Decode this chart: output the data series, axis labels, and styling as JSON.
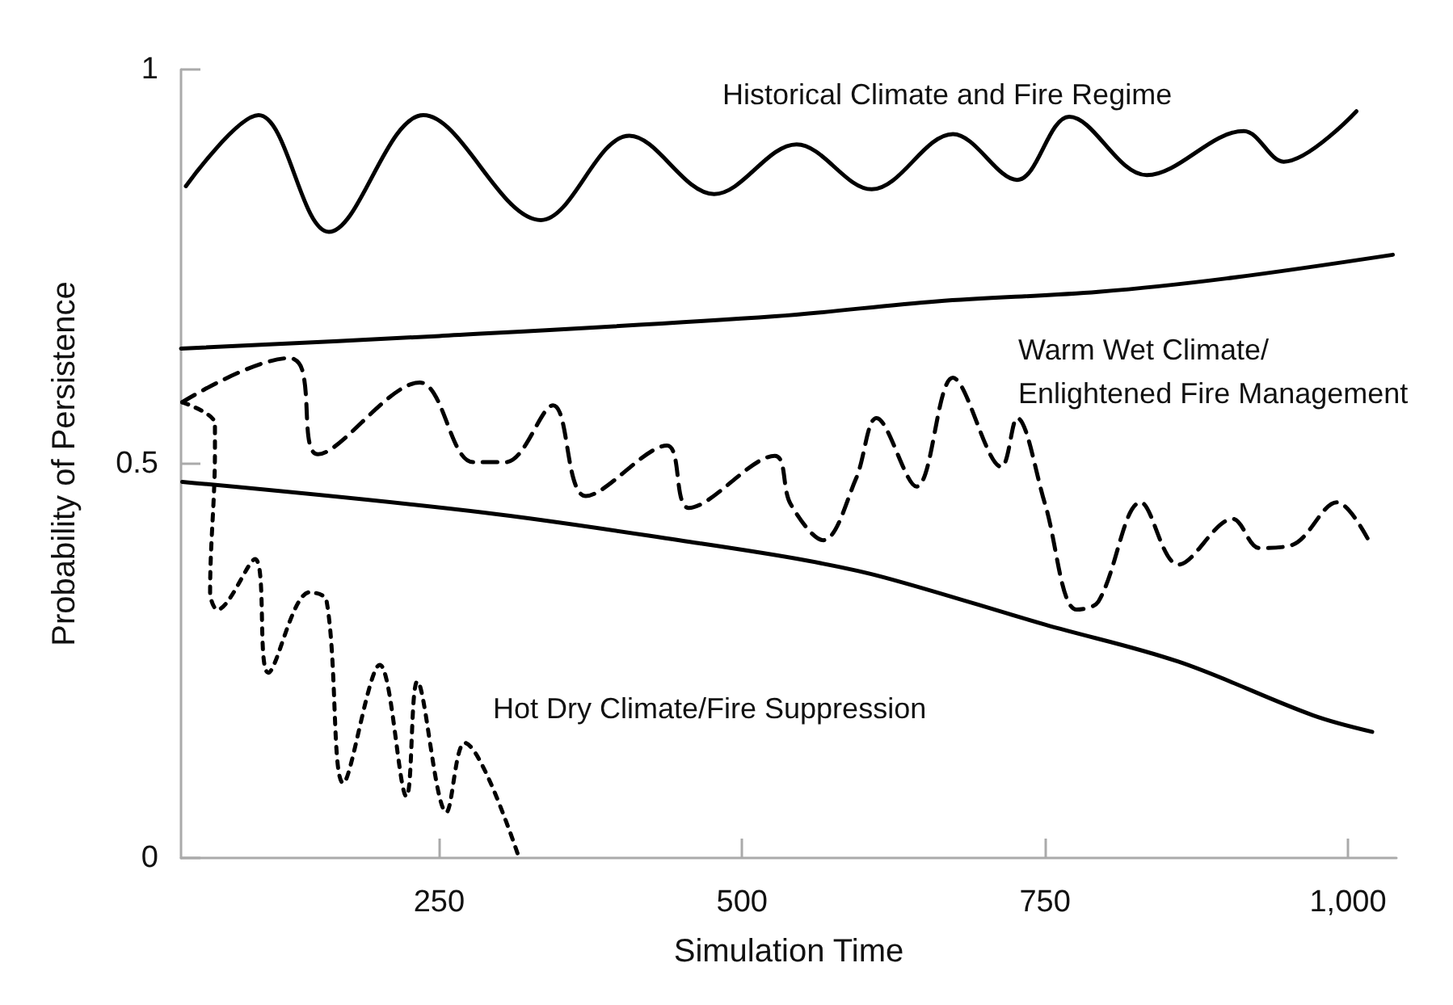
{
  "chart_data": {
    "type": "line",
    "xlabel": "Simulation Time",
    "ylabel": "Probability of Persistence",
    "xlim": [
      37,
      1040
    ],
    "ylim": [
      0,
      1
    ],
    "xticks": [
      250,
      500,
      750,
      {
        "value": 1000,
        "label": "1,000"
      }
    ],
    "yticks": [
      0,
      0.5,
      1
    ],
    "grid": false,
    "marker": "none",
    "series": [
      {
        "color": "#000000",
        "line_style": "solid",
        "x": [
          41,
          101,
          159,
          237,
          334,
          407,
          477,
          545,
          607,
          674,
          727,
          770,
          834,
          914,
          947,
          1007
        ],
        "values": [
          0.852,
          0.942,
          0.794,
          0.942,
          0.809,
          0.916,
          0.842,
          0.905,
          0.848,
          0.918,
          0.86,
          0.94,
          0.866,
          0.922,
          0.883,
          0.947
        ]
      },
      {
        "color": "#000000",
        "line_style": "solid",
        "x": [
          37,
          250,
          527,
          661,
          794,
          900,
          1037
        ],
        "values": [
          0.646,
          0.662,
          0.687,
          0.706,
          0.718,
          0.735,
          0.765
        ]
      },
      {
        "color": "#000000",
        "line_style": "dashed",
        "x": [
          38,
          127,
          137,
          150,
          234,
          278,
          305,
          344,
          371,
          438,
          456,
          527,
          540,
          567,
          594,
          611,
          644,
          674,
          714,
          727,
          750,
          776,
          794,
          829,
          860,
          905,
          927,
          954,
          991,
          1017
        ],
        "values": [
          0.578,
          0.634,
          0.619,
          0.512,
          0.603,
          0.502,
          0.502,
          0.574,
          0.459,
          0.523,
          0.444,
          0.51,
          0.449,
          0.403,
          0.481,
          0.558,
          0.471,
          0.609,
          0.496,
          0.558,
          0.449,
          0.315,
          0.325,
          0.451,
          0.372,
          0.43,
          0.393,
          0.397,
          0.451,
          0.403
        ]
      },
      {
        "color": "#000000",
        "line_style": "solid",
        "x": [
          38,
          287,
          465,
          554,
          617,
          750,
          860,
          971,
          1020
        ],
        "values": [
          0.477,
          0.438,
          0.399,
          0.377,
          0.356,
          0.296,
          0.249,
          0.181,
          0.16
        ]
      },
      {
        "color": "#000000",
        "line_style": "dotted",
        "x": [
          38,
          65,
          65,
          61,
          67,
          98,
          109,
          143,
          157,
          171,
          201,
          223,
          232,
          256,
          271,
          316
        ],
        "values": [
          0.578,
          0.551,
          0.516,
          0.337,
          0.315,
          0.379,
          0.235,
          0.337,
          0.327,
          0.095,
          0.245,
          0.078,
          0.224,
          0.058,
          0.146,
          0
        ]
      }
    ],
    "annotations": [
      "Historical Climate and Fire Regime",
      "Warm Wet Climate/ Enlightened Fire Management",
      "Hot Dry Climate/Fire Suppression"
    ]
  }
}
